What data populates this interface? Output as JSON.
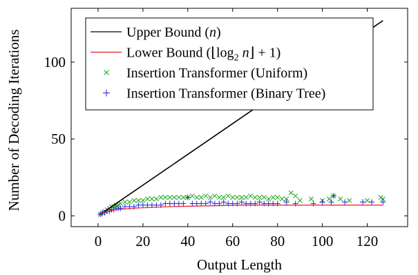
{
  "chart_data": {
    "type": "scatter",
    "xlabel": "Output Length",
    "ylabel": "Number of Decoding Iterations",
    "xlim": [
      -12,
      138
    ],
    "ylim": [
      -7,
      135
    ],
    "xticks": [
      "0",
      "20",
      "40",
      "60",
      "80",
      "100",
      "120"
    ],
    "yticks": [
      "0",
      "50",
      "100"
    ],
    "xtick_values": [
      0,
      20,
      40,
      60,
      80,
      100,
      120
    ],
    "ytick_values": [
      0,
      50,
      100
    ],
    "legend_position": "top-left",
    "grid": false,
    "series": [
      {
        "name": "Upper Bound (n)",
        "legend": {
          "pre": "Upper Bound (",
          "math": "n",
          "post": ")"
        },
        "kind": "line",
        "color": "#000000",
        "x": [
          1,
          127
        ],
        "y": [
          1,
          127
        ]
      },
      {
        "name": "Lower Bound (⌊log₂ n⌋ + 1)",
        "legend": {
          "pre": "Lower Bound (⌊log",
          "sub": "2",
          "math": " n",
          "post": "⌋ + 1)"
        },
        "kind": "line",
        "color": "#e31a1c",
        "x": [
          1,
          2,
          4,
          8,
          16,
          32,
          64,
          127
        ],
        "y": [
          1,
          2,
          3,
          4,
          5,
          6,
          7,
          7
        ]
      },
      {
        "name": "Insertion Transformer (Uniform)",
        "kind": "scatter",
        "marker": "x",
        "color": "#17a817",
        "x": [
          1,
          2,
          3,
          4,
          5,
          6,
          7,
          8,
          9,
          10,
          12,
          14,
          16,
          18,
          20,
          22,
          24,
          26,
          28,
          30,
          32,
          34,
          36,
          38,
          40,
          42,
          44,
          46,
          48,
          50,
          52,
          54,
          56,
          58,
          60,
          62,
          64,
          66,
          68,
          70,
          72,
          74,
          76,
          78,
          80,
          82,
          84,
          86,
          88,
          90,
          95,
          100,
          103,
          105,
          108,
          112,
          120,
          126,
          127
        ],
        "y": [
          1,
          2,
          3,
          4,
          5,
          6,
          6,
          7,
          7,
          8,
          9,
          9,
          10,
          10,
          10,
          11,
          11,
          11,
          12,
          12,
          12,
          12,
          12,
          12,
          12,
          13,
          12,
          12,
          13,
          12,
          13,
          12,
          12,
          13,
          12,
          12,
          12,
          12,
          13,
          12,
          12,
          12,
          11,
          12,
          12,
          11,
          11,
          15,
          13,
          10,
          11,
          10,
          11,
          13,
          11,
          10,
          10,
          12,
          11
        ]
      },
      {
        "name": "Insertion Transformer (Binary Tree)",
        "kind": "scatter",
        "marker": "+",
        "color": "#1f1fdd",
        "x": [
          1,
          2,
          3,
          4,
          5,
          6,
          7,
          8,
          9,
          10,
          12,
          14,
          16,
          18,
          20,
          22,
          24,
          26,
          28,
          30,
          32,
          34,
          36,
          38,
          40,
          42,
          44,
          46,
          48,
          50,
          52,
          54,
          56,
          58,
          60,
          62,
          64,
          66,
          68,
          70,
          72,
          74,
          76,
          78,
          80,
          84,
          88,
          96,
          100,
          104,
          105,
          110,
          118,
          122,
          127
        ],
        "y": [
          1,
          2,
          2,
          3,
          3,
          4,
          4,
          5,
          5,
          5,
          6,
          6,
          6,
          7,
          7,
          7,
          7,
          7,
          7,
          8,
          8,
          8,
          8,
          8,
          12,
          8,
          8,
          8,
          8,
          9,
          8,
          8,
          9,
          8,
          8,
          8,
          9,
          8,
          8,
          8,
          9,
          8,
          8,
          8,
          8,
          9,
          8,
          8,
          9,
          9,
          13,
          9,
          9,
          9,
          9
        ]
      }
    ]
  }
}
